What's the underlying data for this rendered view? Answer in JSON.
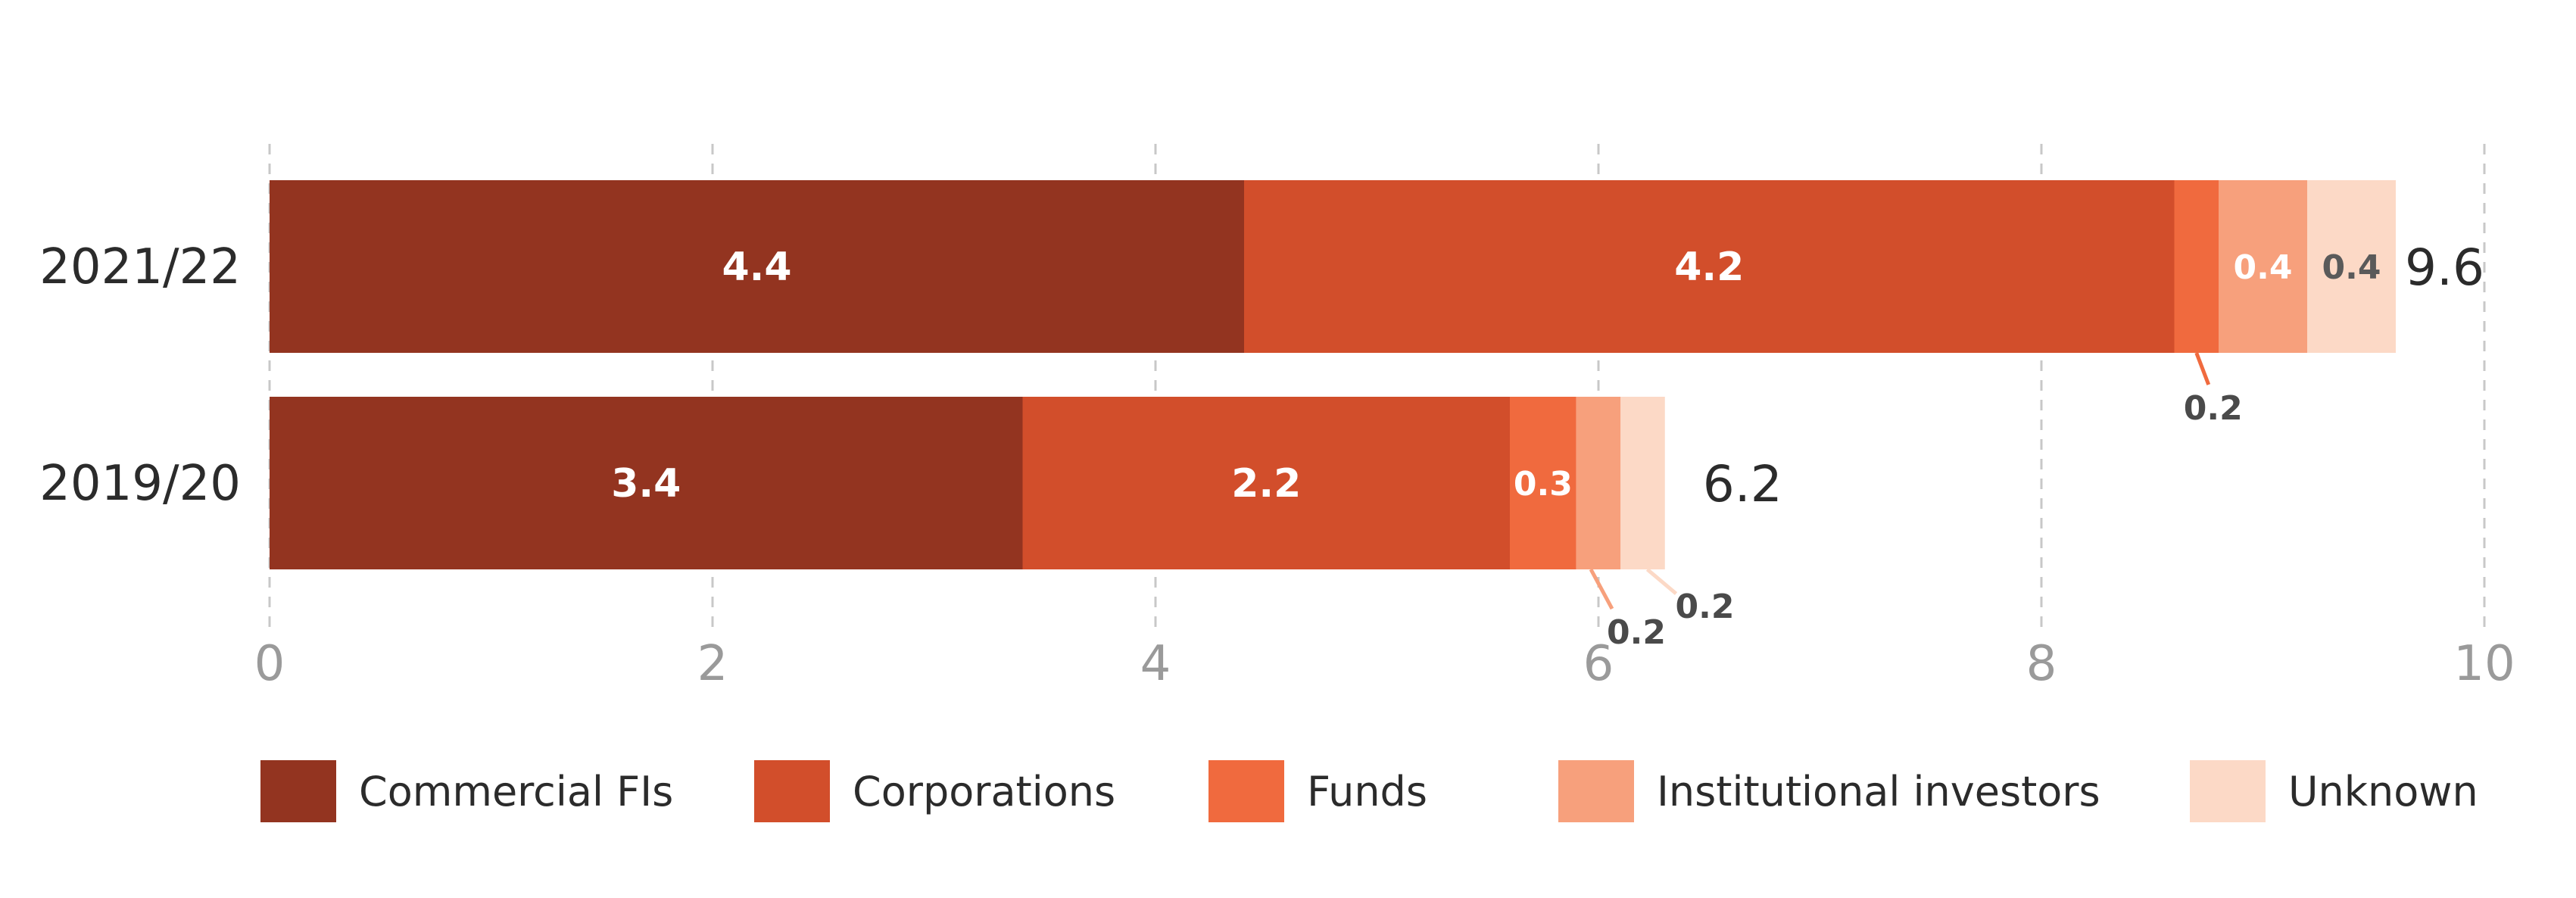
{
  "chart_data": {
    "type": "bar",
    "orientation": "horizontal",
    "stacked": true,
    "categories": [
      "2021/22",
      "2019/20"
    ],
    "series": [
      {
        "name": "Commercial FIs",
        "color": "#933420",
        "values": [
          4.4,
          3.4
        ],
        "labels": [
          "4.4",
          "3.4"
        ]
      },
      {
        "name": "Corporations",
        "color": "#D24E2B",
        "values": [
          4.2,
          2.2
        ],
        "labels": [
          "4.2",
          "2.2"
        ]
      },
      {
        "name": "Funds",
        "color": "#F06A3E",
        "values": [
          0.2,
          0.3
        ],
        "labels": [
          "0.2",
          "0.3"
        ]
      },
      {
        "name": "Institutional investors",
        "color": "#F7A07C",
        "values": [
          0.4,
          0.2
        ],
        "labels": [
          "0.4",
          "0.2"
        ]
      },
      {
        "name": "Unknown",
        "color": "#FCD9C6",
        "values": [
          0.4,
          0.2
        ],
        "labels": [
          "0.4",
          "0.2"
        ]
      }
    ],
    "totals": [
      "9.6",
      "6.2"
    ],
    "xlim": [
      0,
      10
    ],
    "xticks": [
      "0",
      "2",
      "4",
      "6",
      "8",
      "10"
    ],
    "grid": true,
    "legend_position": "bottom"
  }
}
